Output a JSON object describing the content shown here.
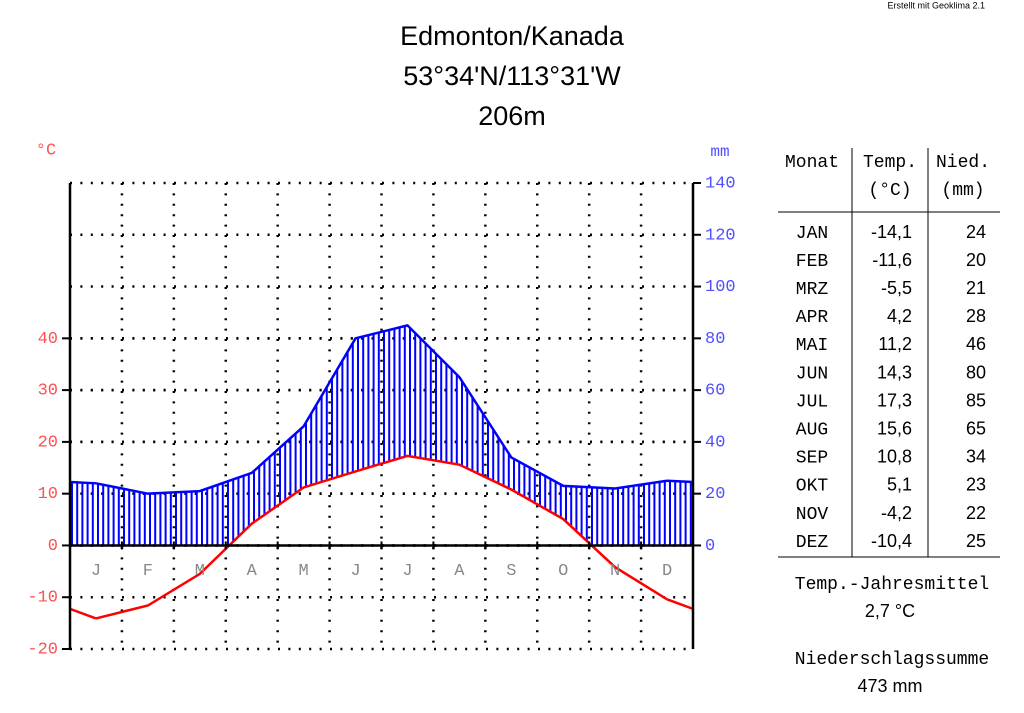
{
  "chart_data": {
    "type": "climate",
    "title": "Edmonton/Kanada",
    "subtitle": "53°34'N/113°31'W",
    "elevation": "206m",
    "credit": "Erstellt mit Geoklima 2.1",
    "ylabel": "°C",
    "y2label": "mm",
    "categories": [
      "J",
      "F",
      "M",
      "A",
      "M",
      "J",
      "J",
      "A",
      "S",
      "O",
      "N",
      "D"
    ],
    "series": [
      {
        "color": "#ff0000",
        "values": [
          -14.1,
          -11.6,
          -5.5,
          4.2,
          11.2,
          14.3,
          17.3,
          15.6,
          10.8,
          5.1,
          -4.2,
          -10.4
        ],
        "value_labels": [
          "-14,1",
          "-11,6",
          "-5,5",
          "4,2",
          "11,2",
          "14,3",
          "17,3",
          "15,6",
          "10,8",
          "5,1",
          "-4,2",
          "-10,4"
        ]
      },
      {
        "color": "#0000ff",
        "axis": "y2",
        "values": [
          24,
          20,
          21,
          28,
          46,
          80,
          85,
          65,
          34,
          23,
          22,
          25
        ]
      }
    ],
    "ylim": [
      -20,
      70
    ],
    "yticks": [
      -20,
      -10,
      0,
      10,
      20,
      30,
      40
    ],
    "y2lim": [
      -40,
      140
    ],
    "y2ticks": [
      0,
      20,
      40,
      60,
      80,
      100,
      120,
      140
    ],
    "grid": true
  },
  "table": {
    "headers": [
      "Monat",
      "Temp.",
      "(°C)",
      "Nied.",
      "(mm)"
    ],
    "months": [
      "JAN",
      "FEB",
      "MRZ",
      "APR",
      "MAI",
      "JUN",
      "JUL",
      "AUG",
      "SEP",
      "OKT",
      "NOV",
      "DEZ"
    ],
    "temp_label": "Temp.-Jahresmittel",
    "temp_value": "2,7 °C",
    "precip_label": "Niederschlagssumme",
    "precip_value": "473 mm"
  }
}
